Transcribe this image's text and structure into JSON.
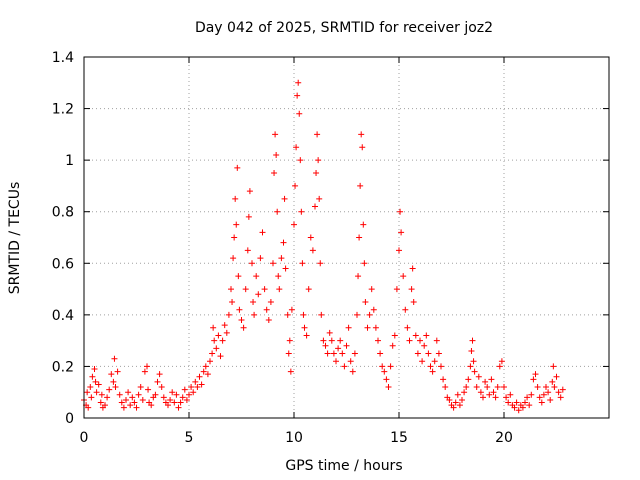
{
  "chart_data": {
    "type": "scatter",
    "title": "Day 042 of 2025, SRMTID for receiver joz2",
    "xlabel": "GPS time / hours",
    "ylabel": "SRMTID / TECUs",
    "xlim": [
      0,
      25
    ],
    "ylim": [
      0,
      1.4
    ],
    "xticks": [
      0,
      5,
      10,
      15,
      20
    ],
    "yticks": [
      0,
      0.2,
      0.4,
      0.6,
      0.8,
      1,
      1.2,
      1.4
    ],
    "xtick_labels": [
      "0",
      "5",
      "10",
      "15",
      "20"
    ],
    "ytick_labels": [
      "0",
      "0.2",
      "0.4",
      "0.6",
      "0.8",
      "1",
      "1.2",
      "1.4"
    ],
    "grid": true,
    "marker": "+",
    "series": [
      {
        "name": "SRMTID",
        "color": "#ff0000",
        "points": [
          [
            0.0,
            0.07
          ],
          [
            0.1,
            0.05
          ],
          [
            0.15,
            0.1
          ],
          [
            0.2,
            0.04
          ],
          [
            0.3,
            0.12
          ],
          [
            0.35,
            0.08
          ],
          [
            0.4,
            0.16
          ],
          [
            0.5,
            0.19
          ],
          [
            0.55,
            0.14
          ],
          [
            0.6,
            0.1
          ],
          [
            0.7,
            0.13
          ],
          [
            0.8,
            0.06
          ],
          [
            0.85,
            0.09
          ],
          [
            0.9,
            0.04
          ],
          [
            1.0,
            0.05
          ],
          [
            1.1,
            0.08
          ],
          [
            1.2,
            0.11
          ],
          [
            1.3,
            0.17
          ],
          [
            1.4,
            0.14
          ],
          [
            1.45,
            0.23
          ],
          [
            1.5,
            0.12
          ],
          [
            1.6,
            0.18
          ],
          [
            1.7,
            0.09
          ],
          [
            1.8,
            0.06
          ],
          [
            1.9,
            0.04
          ],
          [
            2.0,
            0.07
          ],
          [
            2.1,
            0.1
          ],
          [
            2.2,
            0.05
          ],
          [
            2.3,
            0.08
          ],
          [
            2.4,
            0.06
          ],
          [
            2.5,
            0.04
          ],
          [
            2.6,
            0.09
          ],
          [
            2.7,
            0.12
          ],
          [
            2.8,
            0.07
          ],
          [
            2.9,
            0.18
          ],
          [
            3.0,
            0.2
          ],
          [
            3.05,
            0.11
          ],
          [
            3.1,
            0.06
          ],
          [
            3.2,
            0.05
          ],
          [
            3.3,
            0.08
          ],
          [
            3.4,
            0.09
          ],
          [
            3.5,
            0.14
          ],
          [
            3.6,
            0.17
          ],
          [
            3.7,
            0.12
          ],
          [
            3.8,
            0.08
          ],
          [
            3.9,
            0.06
          ],
          [
            4.0,
            0.05
          ],
          [
            4.1,
            0.07
          ],
          [
            4.2,
            0.1
          ],
          [
            4.3,
            0.06
          ],
          [
            4.4,
            0.09
          ],
          [
            4.5,
            0.04
          ],
          [
            4.6,
            0.06
          ],
          [
            4.7,
            0.08
          ],
          [
            4.8,
            0.11
          ],
          [
            4.9,
            0.07
          ],
          [
            5.0,
            0.09
          ],
          [
            5.1,
            0.12
          ],
          [
            5.2,
            0.1
          ],
          [
            5.3,
            0.14
          ],
          [
            5.4,
            0.12
          ],
          [
            5.5,
            0.16
          ],
          [
            5.6,
            0.13
          ],
          [
            5.7,
            0.18
          ],
          [
            5.8,
            0.2
          ],
          [
            5.9,
            0.17
          ],
          [
            6.0,
            0.22
          ],
          [
            6.1,
            0.25
          ],
          [
            6.15,
            0.35
          ],
          [
            6.2,
            0.3
          ],
          [
            6.3,
            0.27
          ],
          [
            6.4,
            0.32
          ],
          [
            6.5,
            0.24
          ],
          [
            6.6,
            0.3
          ],
          [
            6.7,
            0.36
          ],
          [
            6.8,
            0.33
          ],
          [
            6.9,
            0.4
          ],
          [
            7.0,
            0.5
          ],
          [
            7.05,
            0.45
          ],
          [
            7.1,
            0.62
          ],
          [
            7.15,
            0.7
          ],
          [
            7.2,
            0.85
          ],
          [
            7.25,
            0.75
          ],
          [
            7.3,
            0.97
          ],
          [
            7.35,
            0.55
          ],
          [
            7.4,
            0.42
          ],
          [
            7.5,
            0.38
          ],
          [
            7.6,
            0.35
          ],
          [
            7.7,
            0.5
          ],
          [
            7.8,
            0.65
          ],
          [
            7.85,
            0.78
          ],
          [
            7.9,
            0.88
          ],
          [
            8.0,
            0.6
          ],
          [
            8.05,
            0.45
          ],
          [
            8.1,
            0.4
          ],
          [
            8.2,
            0.55
          ],
          [
            8.3,
            0.48
          ],
          [
            8.4,
            0.62
          ],
          [
            8.5,
            0.72
          ],
          [
            8.6,
            0.5
          ],
          [
            8.7,
            0.42
          ],
          [
            8.8,
            0.38
          ],
          [
            8.9,
            0.45
          ],
          [
            9.0,
            0.6
          ],
          [
            9.05,
            0.95
          ],
          [
            9.1,
            1.1
          ],
          [
            9.15,
            1.02
          ],
          [
            9.2,
            0.8
          ],
          [
            9.25,
            0.55
          ],
          [
            9.3,
            0.5
          ],
          [
            9.4,
            0.62
          ],
          [
            9.5,
            0.68
          ],
          [
            9.55,
            0.85
          ],
          [
            9.6,
            0.58
          ],
          [
            9.7,
            0.4
          ],
          [
            9.75,
            0.25
          ],
          [
            9.8,
            0.3
          ],
          [
            9.85,
            0.18
          ],
          [
            9.9,
            0.42
          ],
          [
            10.0,
            0.75
          ],
          [
            10.05,
            0.9
          ],
          [
            10.1,
            1.05
          ],
          [
            10.15,
            1.25
          ],
          [
            10.2,
            1.3
          ],
          [
            10.25,
            1.18
          ],
          [
            10.3,
            1.0
          ],
          [
            10.35,
            0.8
          ],
          [
            10.4,
            0.6
          ],
          [
            10.45,
            0.4
          ],
          [
            10.5,
            0.35
          ],
          [
            10.6,
            0.32
          ],
          [
            10.7,
            0.5
          ],
          [
            10.8,
            0.7
          ],
          [
            10.9,
            0.65
          ],
          [
            11.0,
            0.82
          ],
          [
            11.05,
            0.95
          ],
          [
            11.1,
            1.1
          ],
          [
            11.15,
            1.0
          ],
          [
            11.2,
            0.85
          ],
          [
            11.25,
            0.6
          ],
          [
            11.3,
            0.4
          ],
          [
            11.4,
            0.3
          ],
          [
            11.5,
            0.28
          ],
          [
            11.6,
            0.25
          ],
          [
            11.7,
            0.33
          ],
          [
            11.8,
            0.3
          ],
          [
            11.9,
            0.25
          ],
          [
            12.0,
            0.22
          ],
          [
            12.1,
            0.27
          ],
          [
            12.2,
            0.3
          ],
          [
            12.3,
            0.25
          ],
          [
            12.4,
            0.2
          ],
          [
            12.5,
            0.28
          ],
          [
            12.6,
            0.35
          ],
          [
            12.7,
            0.22
          ],
          [
            12.8,
            0.18
          ],
          [
            12.9,
            0.25
          ],
          [
            13.0,
            0.4
          ],
          [
            13.05,
            0.55
          ],
          [
            13.1,
            0.7
          ],
          [
            13.15,
            0.9
          ],
          [
            13.2,
            1.1
          ],
          [
            13.25,
            1.05
          ],
          [
            13.3,
            0.75
          ],
          [
            13.35,
            0.6
          ],
          [
            13.4,
            0.45
          ],
          [
            13.5,
            0.35
          ],
          [
            13.6,
            0.4
          ],
          [
            13.7,
            0.5
          ],
          [
            13.8,
            0.42
          ],
          [
            13.9,
            0.35
          ],
          [
            14.0,
            0.3
          ],
          [
            14.1,
            0.25
          ],
          [
            14.2,
            0.2
          ],
          [
            14.3,
            0.18
          ],
          [
            14.4,
            0.15
          ],
          [
            14.5,
            0.12
          ],
          [
            14.6,
            0.2
          ],
          [
            14.7,
            0.28
          ],
          [
            14.8,
            0.32
          ],
          [
            14.9,
            0.5
          ],
          [
            15.0,
            0.65
          ],
          [
            15.05,
            0.8
          ],
          [
            15.1,
            0.72
          ],
          [
            15.2,
            0.55
          ],
          [
            15.3,
            0.42
          ],
          [
            15.4,
            0.35
          ],
          [
            15.5,
            0.3
          ],
          [
            15.6,
            0.5
          ],
          [
            15.65,
            0.58
          ],
          [
            15.7,
            0.45
          ],
          [
            15.8,
            0.32
          ],
          [
            15.9,
            0.25
          ],
          [
            16.0,
            0.3
          ],
          [
            16.1,
            0.22
          ],
          [
            16.2,
            0.28
          ],
          [
            16.3,
            0.32
          ],
          [
            16.4,
            0.25
          ],
          [
            16.5,
            0.2
          ],
          [
            16.6,
            0.18
          ],
          [
            16.7,
            0.22
          ],
          [
            16.8,
            0.3
          ],
          [
            16.9,
            0.25
          ],
          [
            17.0,
            0.2
          ],
          [
            17.1,
            0.15
          ],
          [
            17.2,
            0.12
          ],
          [
            17.3,
            0.08
          ],
          [
            17.4,
            0.07
          ],
          [
            17.5,
            0.05
          ],
          [
            17.6,
            0.04
          ],
          [
            17.7,
            0.06
          ],
          [
            17.8,
            0.09
          ],
          [
            17.9,
            0.05
          ],
          [
            18.0,
            0.07
          ],
          [
            18.1,
            0.1
          ],
          [
            18.2,
            0.12
          ],
          [
            18.3,
            0.15
          ],
          [
            18.4,
            0.2
          ],
          [
            18.45,
            0.26
          ],
          [
            18.5,
            0.3
          ],
          [
            18.55,
            0.22
          ],
          [
            18.6,
            0.18
          ],
          [
            18.7,
            0.12
          ],
          [
            18.8,
            0.16
          ],
          [
            18.9,
            0.1
          ],
          [
            19.0,
            0.08
          ],
          [
            19.1,
            0.14
          ],
          [
            19.2,
            0.12
          ],
          [
            19.3,
            0.09
          ],
          [
            19.4,
            0.15
          ],
          [
            19.5,
            0.1
          ],
          [
            19.6,
            0.08
          ],
          [
            19.7,
            0.12
          ],
          [
            19.8,
            0.2
          ],
          [
            19.9,
            0.22
          ],
          [
            20.0,
            0.12
          ],
          [
            20.1,
            0.08
          ],
          [
            20.2,
            0.06
          ],
          [
            20.3,
            0.09
          ],
          [
            20.4,
            0.05
          ],
          [
            20.5,
            0.04
          ],
          [
            20.6,
            0.06
          ],
          [
            20.7,
            0.03
          ],
          [
            20.8,
            0.05
          ],
          [
            20.9,
            0.04
          ],
          [
            21.0,
            0.06
          ],
          [
            21.1,
            0.08
          ],
          [
            21.2,
            0.05
          ],
          [
            21.3,
            0.09
          ],
          [
            21.4,
            0.15
          ],
          [
            21.5,
            0.17
          ],
          [
            21.6,
            0.12
          ],
          [
            21.7,
            0.08
          ],
          [
            21.8,
            0.06
          ],
          [
            21.9,
            0.09
          ],
          [
            22.0,
            0.12
          ],
          [
            22.1,
            0.1
          ],
          [
            22.2,
            0.07
          ],
          [
            22.3,
            0.14
          ],
          [
            22.35,
            0.2
          ],
          [
            22.4,
            0.12
          ],
          [
            22.5,
            0.16
          ],
          [
            22.6,
            0.1
          ],
          [
            22.7,
            0.08
          ],
          [
            22.8,
            0.11
          ]
        ]
      }
    ]
  }
}
